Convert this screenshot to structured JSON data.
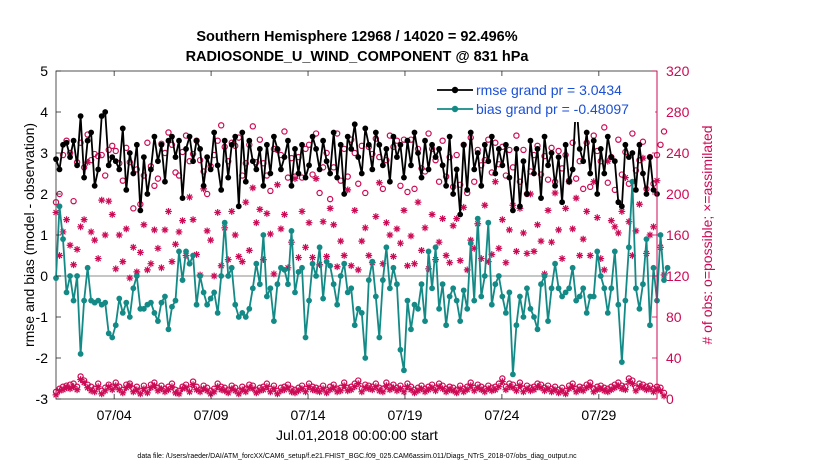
{
  "chart_data": {
    "type": "line",
    "title_line1": "Southern Hemisphere 12968 / 14020 = 92.496%",
    "title_line2": "RADIOSONDE_U_WIND_COMPONENT @ 831 hPa",
    "ylabel_left": "rmse and bias (model - observation)",
    "ylabel_right": "# of obs: o=possible; ×=assimilated",
    "xlabel": "Jul.01,2018 00:00:00 start",
    "footnote": "data file: /Users/raeder/DAI/ATM_forcXX/CAM6_setup/f.e21.FHIST_BGC.f09_025.CAM6assim.011/Diags_NTrS_2018-07/obs_diag_output.nc",
    "xlim": [
      1,
      32
    ],
    "xticks": [
      4,
      9,
      14,
      19,
      24,
      29
    ],
    "xtick_labels": [
      "07/04",
      "07/09",
      "07/14",
      "07/19",
      "07/24",
      "07/29"
    ],
    "ylim_left": [
      -3,
      5
    ],
    "yticks_left": [
      -3,
      -2,
      -1,
      0,
      1,
      2,
      3,
      4,
      5
    ],
    "ylim_right": [
      0,
      320
    ],
    "yticks_right": [
      0,
      40,
      80,
      120,
      160,
      200,
      240,
      280,
      320
    ],
    "legend": [
      {
        "label": "rmse grand pr = 3.0434",
        "color": "#000000"
      },
      {
        "label": "bias grand pr = -0.48097",
        "color": "#138a86"
      }
    ],
    "colors": {
      "rmse": "#000000",
      "bias": "#138a86",
      "obs": "#cc0a55",
      "text_blue": "#1a4fd6",
      "zero_line": "#b4b4b4"
    },
    "rmse": [
      2.85,
      2.6,
      3.2,
      3.25,
      2.9,
      3.3,
      2.7,
      3.9,
      2.4,
      3.3,
      3.5,
      2.2,
      2.6,
      3.9,
      4.0,
      2.7,
      2.9,
      2.8,
      2.6,
      3.6,
      2.1,
      3.0,
      2.5,
      3.2,
      1.6,
      2.9,
      2.0,
      2.6,
      3.4,
      2.8,
      3.2,
      2.3,
      3.3,
      3.4,
      2.9,
      3.3,
      1.9,
      3.1,
      3.4,
      2.8,
      3.3,
      3.1,
      2.2,
      2.9,
      2.6,
      3.5,
      2.7,
      2.1,
      3.3,
      2.4,
      3.2,
      3.4,
      1.7,
      3.5,
      2.3,
      3.3,
      2.8,
      2.6,
      3.1,
      2.2,
      3.2,
      2.5,
      3.4,
      3.1,
      2.6,
      2.9,
      3.3,
      2.2,
      3.1,
      2.5,
      3.2,
      2.4,
      2.7,
      3.4,
      3.1,
      2.6,
      3.3,
      2.8,
      2.5,
      3.5,
      2.4,
      3.2,
      2.0,
      3.4,
      3.1,
      3.7,
      2.9,
      2.5,
      3.6,
      3.2,
      2.6,
      3.5,
      3.2,
      2.7,
      3.1,
      2.3,
      3.4,
      2.9,
      3.2,
      2.4,
      3.3,
      2.7,
      3.5,
      3.0,
      2.4,
      3.3,
      2.6,
      3.2,
      2.9,
      3.1,
      2.7,
      2.2,
      3.4,
      2.0,
      2.6,
      1.5,
      3.2,
      2.1,
      3.5,
      2.6,
      3.0,
      2.2,
      3.2,
      2.8,
      3.4,
      2.5,
      3.1,
      2.7,
      3.2,
      2.4,
      1.6,
      3.1,
      1.7,
      2.8,
      2.0,
      3.3,
      2.5,
      3.1,
      1.9,
      3.4,
      2.7,
      3.0,
      2.2,
      2.9,
      1.8,
      3.2,
      2.3,
      2.6,
      4.3,
      3.1,
      2.8,
      3.5,
      2.5,
      3.3,
      2.0,
      3.1,
      2.5,
      3.4,
      2.9,
      2.8,
      1.8,
      1.7,
      3.2,
      2.9,
      3.0,
      2.1,
      3.2,
      2.5,
      2.0,
      2.9,
      2.1,
      2.0
    ],
    "bias": [
      -0.05,
      1.7,
      0.9,
      -0.4,
      0.0,
      -0.6,
      0.0,
      -1.9,
      -0.6,
      0.2,
      -0.6,
      -0.65,
      -0.6,
      -0.7,
      -0.65,
      -1.4,
      -1.5,
      -1.2,
      -0.55,
      -0.9,
      -0.65,
      -1.0,
      -0.3,
      0.0,
      -0.8,
      -0.8,
      -0.7,
      -0.65,
      -0.9,
      -1.1,
      -0.65,
      -0.5,
      -1.3,
      -0.75,
      -0.6,
      0.6,
      -0.1,
      0.6,
      0.3,
      0.5,
      -0.7,
      0.0,
      -0.4,
      -0.7,
      -0.55,
      -0.4,
      -0.9,
      0.0,
      1.3,
      0.0,
      0.2,
      -0.7,
      -1.0,
      -0.9,
      -1.0,
      -0.8,
      -0.3,
      0.3,
      -0.2,
      1.0,
      -0.5,
      -0.3,
      -1.1,
      -0.2,
      0.2,
      0.15,
      -0.2,
      1.1,
      -0.4,
      0.1,
      0.2,
      -1.5,
      -0.6,
      0.3,
      0.0,
      0.7,
      -0.55,
      0.35,
      0.25,
      -0.2,
      -0.7,
      0.0,
      0.3,
      -0.4,
      -0.3,
      -1.2,
      -0.8,
      -0.9,
      -2.0,
      -0.1,
      0.35,
      -0.5,
      -1.5,
      -0.1,
      0.7,
      -0.3,
      0.2,
      -0.2,
      -1.8,
      -2.3,
      -0.6,
      -1.3,
      -0.7,
      -0.8,
      -0.2,
      -1.1,
      0.6,
      -0.3,
      0.7,
      -0.8,
      -0.2,
      -1.2,
      -0.5,
      -0.3,
      -0.6,
      -1.1,
      -0.35,
      -0.8,
      0.8,
      -0.6,
      1.4,
      -0.5,
      0.0,
      1.3,
      -0.7,
      -0.2,
      0.0,
      -0.5,
      -0.9,
      -0.4,
      -2.4,
      -1.2,
      -0.5,
      -1.0,
      -0.3,
      -0.8,
      -1.0,
      -1.3,
      -0.2,
      0.0,
      -1.1,
      -0.3,
      0.3,
      -0.3,
      -0.5,
      -0.4,
      -0.3,
      0.2,
      -0.6,
      -0.5,
      -0.3,
      -0.9,
      -0.5,
      -0.5,
      0.6,
      0.0,
      -0.3,
      -0.9,
      -0.3,
      0.6,
      -0.7,
      -2.1,
      -0.6,
      0.7,
      2.3,
      -0.3,
      -0.8,
      -0.2,
      0.9,
      -1.2,
      0.2,
      -0.6,
      1.0,
      -0.1,
      0.2
    ],
    "obs_possible": [
      192,
      200,
      238,
      252,
      240,
      193,
      231,
      250,
      226,
      258,
      233,
      239,
      237,
      238,
      218,
      243,
      247,
      242,
      230,
      213,
      245,
      231,
      186,
      224,
      190,
      218,
      250,
      227,
      208,
      215,
      249,
      240,
      260,
      248,
      221,
      218,
      241,
      257,
      232,
      239,
      252,
      233,
      222,
      200,
      227,
      238,
      252,
      267,
      246,
      232,
      250,
      247,
      255,
      218,
      230,
      248,
      266,
      231,
      253,
      230,
      218,
      203,
      244,
      243,
      238,
      261,
      216,
      235,
      217,
      236,
      216,
      244,
      248,
      219,
      259,
      201,
      226,
      240,
      195,
      226,
      259,
      213,
      244,
      217,
      253,
      240,
      210,
      247,
      201,
      246,
      239,
      254,
      236,
      205,
      233,
      257,
      246,
      252,
      208,
      253,
      202,
      253,
      205,
      244,
      225,
      222,
      259,
      244,
      233,
      212,
      252,
      217,
      236,
      207,
      238,
      209,
      248,
      201,
      255,
      212,
      243,
      228,
      233,
      253,
      221,
      250,
      229,
      246,
      218,
      243,
      226,
      257,
      212,
      243,
      200,
      222,
      238,
      247,
      219,
      237,
      214,
      245,
      212,
      242,
      225,
      238,
      213,
      250,
      215,
      232,
      205,
      250,
      207,
      257,
      242,
      232,
      265,
      211,
      236,
      204,
      253,
      219,
      241,
      210,
      259,
      223,
      233,
      251,
      205,
      236,
      210,
      238,
      248,
      261
    ],
    "obs_assimilated": [
      182,
      140,
      163,
      175,
      150,
      131,
      146,
      168,
      175,
      231,
      163,
      155,
      137,
      194,
      160,
      193,
      180,
      127,
      160,
      134,
      166,
      118,
      148,
      124,
      143,
      170,
      126,
      132,
      165,
      147,
      128,
      165,
      183,
      134,
      151,
      163,
      174,
      140,
      197,
      175,
      141,
      121,
      205,
      164,
      155,
      120,
      182,
      130,
      167,
      136,
      183,
      160,
      139,
      134,
      192,
      145,
      206,
      172,
      185,
      136,
      181,
      161,
      122,
      209,
      166,
      180,
      128,
      153,
      215,
      138,
      183,
      148,
      172,
      138,
      215,
      131,
      173,
      139,
      186,
      170,
      129,
      154,
      140,
      204,
      130,
      184,
      126,
      154,
      167,
      140,
      133,
      178,
      211,
      132,
      172,
      160,
      139,
      166,
      152,
      184,
      130,
      159,
      132,
      192,
      145,
      167,
      127,
      180,
      136,
      153,
      176,
      140,
      133,
      169,
      176,
      135,
      187,
      126,
      155,
      147,
      171,
      137,
      189,
      134,
      141,
      212,
      147,
      175,
      133,
      165,
      189,
      144,
      186,
      162,
      142,
      200,
      144,
      170,
      154,
      122,
      184,
      153,
      201,
      165,
      137,
      186,
      212,
      166,
      196,
      140,
      156,
      183,
      140,
      212,
      177,
      137,
      126,
      232,
      174,
      168,
      162,
      183,
      216,
      173,
      140,
      164,
      190,
      235,
      142,
      160,
      168,
      213,
      148,
      121
    ],
    "obs_low_possible": [
      7,
      10,
      12,
      13,
      14,
      15,
      12,
      22,
      18,
      14,
      12,
      10,
      15,
      8,
      11,
      14,
      12,
      16,
      12,
      9,
      14,
      15,
      10,
      12,
      8,
      13,
      9,
      14,
      16,
      11,
      13,
      10,
      12,
      15,
      9,
      8,
      12,
      14,
      10,
      17,
      12,
      9,
      13,
      11,
      8,
      10,
      15,
      12,
      11,
      9,
      13,
      11,
      8,
      12,
      10,
      14,
      13,
      9,
      11,
      12,
      15,
      10,
      13,
      8,
      11,
      12,
      14,
      10,
      9,
      11,
      13,
      10,
      15,
      12,
      11,
      10,
      13,
      9,
      12,
      14,
      10,
      11,
      16,
      11,
      12,
      15,
      18,
      10,
      14,
      13,
      12,
      15,
      11,
      10,
      16,
      12,
      14,
      11,
      13,
      10,
      15,
      12,
      9,
      11,
      13,
      10,
      12,
      14,
      11,
      15,
      13,
      10,
      12,
      11,
      9,
      13,
      10,
      12,
      16,
      11,
      14,
      12,
      10,
      13,
      11,
      12,
      15,
      20,
      12,
      15,
      14,
      11,
      16,
      10,
      13,
      11,
      12,
      15,
      14,
      11,
      13,
      10,
      12,
      9,
      11,
      8,
      13,
      15,
      10,
      12,
      11,
      14,
      16,
      10,
      12,
      13,
      11,
      10,
      12,
      14,
      16,
      13,
      12,
      20,
      18,
      11,
      15,
      14,
      12,
      13,
      10,
      12,
      11,
      6
    ],
    "obs_low_assimilated": [
      4,
      8,
      9,
      11,
      10,
      12,
      9,
      19,
      16,
      11,
      8,
      7,
      12,
      5,
      8,
      12,
      9,
      13,
      9,
      6,
      11,
      13,
      7,
      9,
      5,
      10,
      6,
      11,
      13,
      8,
      10,
      7,
      9,
      12,
      6,
      5,
      10,
      11,
      7,
      14,
      9,
      7,
      10,
      8,
      5,
      7,
      12,
      9,
      8,
      6,
      10,
      8,
      5,
      9,
      7,
      11,
      10,
      6,
      8,
      9,
      12,
      7,
      10,
      5,
      8,
      9,
      11,
      7,
      6,
      8,
      10,
      7,
      12,
      9,
      8,
      7,
      10,
      6,
      9,
      11,
      7,
      8,
      13,
      8,
      9,
      12,
      15,
      7,
      11,
      10,
      9,
      12,
      8,
      7,
      13,
      9,
      11,
      8,
      10,
      7,
      12,
      9,
      6,
      8,
      10,
      7,
      9,
      11,
      8,
      12,
      10,
      7,
      9,
      8,
      6,
      10,
      7,
      9,
      13,
      8,
      11,
      9,
      7,
      10,
      8,
      9,
      12,
      17,
      9,
      12,
      11,
      8,
      13,
      7,
      10,
      8,
      9,
      12,
      11,
      8,
      10,
      7,
      9,
      6,
      8,
      5,
      10,
      12,
      7,
      9,
      8,
      11,
      13,
      7,
      9,
      10,
      8,
      7,
      9,
      11,
      13,
      10,
      9,
      17,
      15,
      8,
      12,
      11,
      9,
      10,
      7,
      9,
      8,
      3
    ]
  }
}
